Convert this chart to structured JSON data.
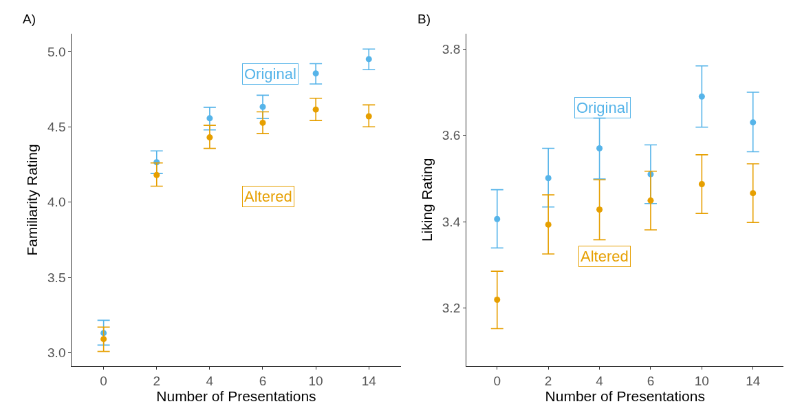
{
  "chart_data": [
    {
      "type": "scatter",
      "title": "A)",
      "xlabel": "Number of Presentations",
      "ylabel": "Familiarity Rating",
      "categories": [
        "0",
        "2",
        "4",
        "6",
        "10",
        "14"
      ],
      "ylim": [
        2.91,
        5.12
      ],
      "yticks": [
        {
          "value": 3.0,
          "label": "3.0"
        },
        {
          "value": 3.5,
          "label": "3.5"
        },
        {
          "value": 4.0,
          "label": "4.0"
        },
        {
          "value": 4.5,
          "label": "4.5"
        },
        {
          "value": 5.0,
          "label": "5.0"
        }
      ],
      "marker": "circle",
      "series": [
        {
          "name": "Original",
          "color": "#56b4e9",
          "values": [
            3.13,
            4.265,
            4.557,
            4.633,
            4.855,
            4.95
          ],
          "errors": [
            [
              3.05,
              3.215
            ],
            [
              4.19,
              4.34
            ],
            [
              4.48,
              4.63
            ],
            [
              4.555,
              4.71
            ],
            [
              4.785,
              4.92
            ],
            [
              4.88,
              5.017
            ]
          ]
        },
        {
          "name": "Altered",
          "color": "#e69f00",
          "values": [
            3.09,
            4.18,
            4.43,
            4.527,
            4.615,
            4.57
          ],
          "errors": [
            [
              3.008,
              3.17
            ],
            [
              4.106,
              4.26
            ],
            [
              4.357,
              4.51
            ],
            [
              4.455,
              4.6
            ],
            [
              4.542,
              4.69
            ],
            [
              4.5,
              4.646
            ]
          ]
        }
      ]
    },
    {
      "type": "scatter",
      "title": "B)",
      "xlabel": "Number of Presentations",
      "ylabel": "Liking Rating",
      "categories": [
        "0",
        "2",
        "4",
        "6",
        "10",
        "14"
      ],
      "ylim": [
        3.065,
        3.836
      ],
      "yticks": [
        {
          "value": 3.2,
          "label": "3.2"
        },
        {
          "value": 3.4,
          "label": "3.4"
        },
        {
          "value": 3.6,
          "label": "3.6"
        },
        {
          "value": 3.8,
          "label": "3.8"
        }
      ],
      "marker": "circle",
      "series": [
        {
          "name": "Original",
          "color": "#56b4e9",
          "values": [
            3.406,
            3.501,
            3.57,
            3.51,
            3.69,
            3.63
          ],
          "errors": [
            [
              3.339,
              3.474
            ],
            [
              3.434,
              3.57
            ],
            [
              3.499,
              3.64
            ],
            [
              3.442,
              3.578
            ],
            [
              3.619,
              3.761
            ],
            [
              3.562,
              3.7
            ]
          ]
        },
        {
          "name": "Altered",
          "color": "#e69f00",
          "values": [
            3.219,
            3.393,
            3.428,
            3.449,
            3.487,
            3.466
          ],
          "errors": [
            [
              3.152,
              3.285
            ],
            [
              3.325,
              3.462
            ],
            [
              3.358,
              3.497
            ],
            [
              3.381,
              3.517
            ],
            [
              3.419,
              3.555
            ],
            [
              3.398,
              3.534
            ]
          ]
        }
      ]
    }
  ]
}
